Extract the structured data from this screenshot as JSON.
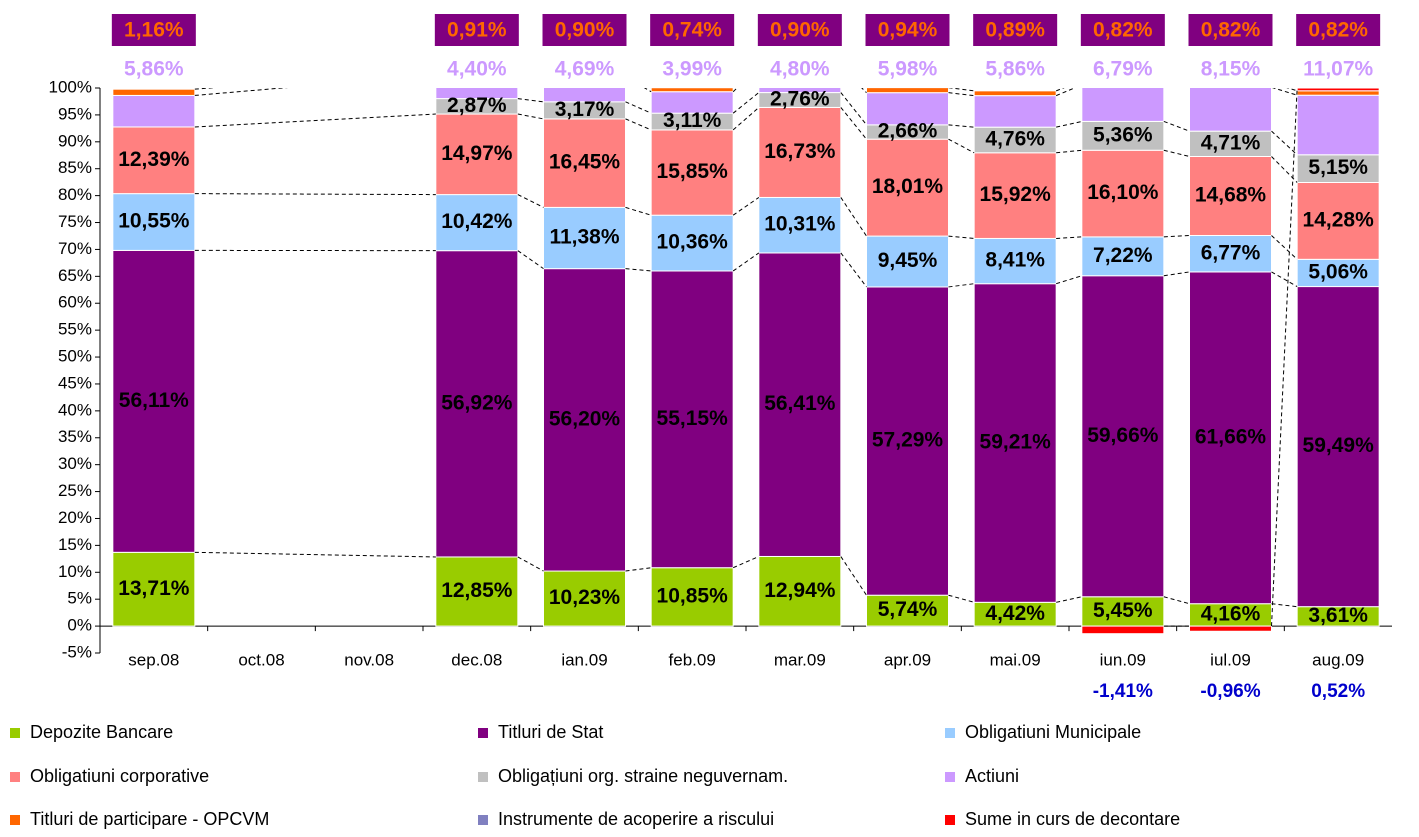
{
  "chart_data": {
    "type": "stacked_bar",
    "categories": [
      "sep.08",
      "oct.08",
      "nov.08",
      "dec.08",
      "ian.09",
      "feb.09",
      "mar.09",
      "apr.09",
      "mai.09",
      "iun.09",
      "iul.09",
      "aug.09"
    ],
    "series": [
      {
        "name": "Depozite Bancare",
        "color": "#99cc00",
        "values": [
          13.71,
          null,
          null,
          12.85,
          10.23,
          10.85,
          12.94,
          5.74,
          4.42,
          5.45,
          4.16,
          3.61
        ],
        "value_labels": [
          "13,71%",
          null,
          null,
          "12,85%",
          "10,23%",
          "10,85%",
          "12,94%",
          "5,74%",
          "4,42%",
          "5,45%",
          "4,16%",
          "3,61%"
        ]
      },
      {
        "name": "Titluri de Stat",
        "color": "#800080",
        "values": [
          56.11,
          null,
          null,
          56.92,
          56.2,
          55.15,
          56.41,
          57.29,
          59.21,
          59.66,
          61.66,
          59.49
        ],
        "value_labels": [
          "56,11%",
          null,
          null,
          "56,92%",
          "56,20%",
          "55,15%",
          "56,41%",
          "57,29%",
          "59,21%",
          "59,66%",
          "61,66%",
          "59,49%"
        ]
      },
      {
        "name": "Obligatiuni Municipale",
        "color": "#99ccff",
        "values": [
          10.55,
          null,
          null,
          10.42,
          11.38,
          10.36,
          10.31,
          9.45,
          8.41,
          7.22,
          6.77,
          5.06
        ],
        "value_labels": [
          "10,55%",
          null,
          null,
          "10,42%",
          "11,38%",
          "10,36%",
          "10,31%",
          "9,45%",
          "8,41%",
          "7,22%",
          "6,77%",
          "5,06%"
        ]
      },
      {
        "name": "Obligatiuni corporative",
        "color": "#ff8080",
        "values": [
          12.39,
          null,
          null,
          14.97,
          16.45,
          15.85,
          16.73,
          18.01,
          15.92,
          16.1,
          14.68,
          14.28
        ],
        "value_labels": [
          "12,39%",
          null,
          null,
          "14,97%",
          "16,45%",
          "15,85%",
          "16,73%",
          "18,01%",
          "15,92%",
          "16,10%",
          "14,68%",
          "14,28%"
        ]
      },
      {
        "name": "Obligațiuni org. straine neguvernam.",
        "color": "#c0c0c0",
        "values": [
          null,
          null,
          null,
          2.87,
          3.17,
          3.11,
          2.76,
          2.66,
          4.76,
          5.36,
          4.71,
          5.15
        ],
        "value_labels": [
          null,
          null,
          null,
          "2,87%",
          "3,17%",
          "3,11%",
          "2,76%",
          "2,66%",
          "4,76%",
          "5,36%",
          "4,71%",
          "5,15%"
        ]
      },
      {
        "name": "Actiuni",
        "color": "#cc99ff",
        "values": [
          5.86,
          null,
          null,
          4.4,
          4.69,
          3.99,
          4.8,
          5.98,
          5.86,
          6.79,
          8.15,
          11.07
        ],
        "value_labels": [
          "5,86%",
          null,
          null,
          "4,40%",
          "4,69%",
          "3,99%",
          "4,80%",
          "5,98%",
          "5,86%",
          "6,79%",
          "8,15%",
          "11,07%"
        ]
      },
      {
        "name": "Titluri de participare - OPCVM",
        "color": "#ff6600",
        "values": [
          1.16,
          null,
          null,
          0.91,
          0.9,
          0.74,
          0.9,
          0.94,
          0.89,
          0.82,
          0.82,
          0.82
        ],
        "value_labels": [
          "1,16%",
          null,
          null,
          "0,91%",
          "0,90%",
          "0,74%",
          "0,90%",
          "0,94%",
          "0,89%",
          "0,82%",
          "0,82%",
          "0,82%"
        ]
      },
      {
        "name": "Instrumente de acoperire a riscului",
        "color": "#8080c0",
        "values": [
          null,
          null,
          null,
          null,
          null,
          null,
          null,
          null,
          null,
          null,
          null,
          null
        ]
      },
      {
        "name": "Sume in curs de decontare",
        "color": "#ff0000",
        "values": [
          null,
          null,
          null,
          null,
          null,
          null,
          null,
          null,
          null,
          -1.41,
          -0.96,
          0.52
        ],
        "value_labels": [
          null,
          null,
          null,
          null,
          null,
          null,
          null,
          null,
          null,
          "-1,41%",
          "-0,96%",
          "0,52%"
        ]
      }
    ],
    "ylim": [
      -5,
      100
    ],
    "yticks": [
      {
        "value": -5,
        "label": "-5%"
      },
      {
        "value": 0,
        "label": "0%"
      },
      {
        "value": 5,
        "label": "5%"
      },
      {
        "value": 10,
        "label": "10%"
      },
      {
        "value": 15,
        "label": "15%"
      },
      {
        "value": 20,
        "label": "20%"
      },
      {
        "value": 25,
        "label": "25%"
      },
      {
        "value": 30,
        "label": "30%"
      },
      {
        "value": 35,
        "label": "35%"
      },
      {
        "value": 40,
        "label": "40%"
      },
      {
        "value": 45,
        "label": "45%"
      },
      {
        "value": 50,
        "label": "50%"
      },
      {
        "value": 55,
        "label": "55%"
      },
      {
        "value": 60,
        "label": "60%"
      },
      {
        "value": 65,
        "label": "65%"
      },
      {
        "value": 70,
        "label": "70%"
      },
      {
        "value": 75,
        "label": "75%"
      },
      {
        "value": 80,
        "label": "80%"
      },
      {
        "value": 85,
        "label": "85%"
      },
      {
        "value": 90,
        "label": "90%"
      },
      {
        "value": 95,
        "label": "95%"
      },
      {
        "value": 100,
        "label": "100%"
      }
    ],
    "legend": "bottom"
  }
}
